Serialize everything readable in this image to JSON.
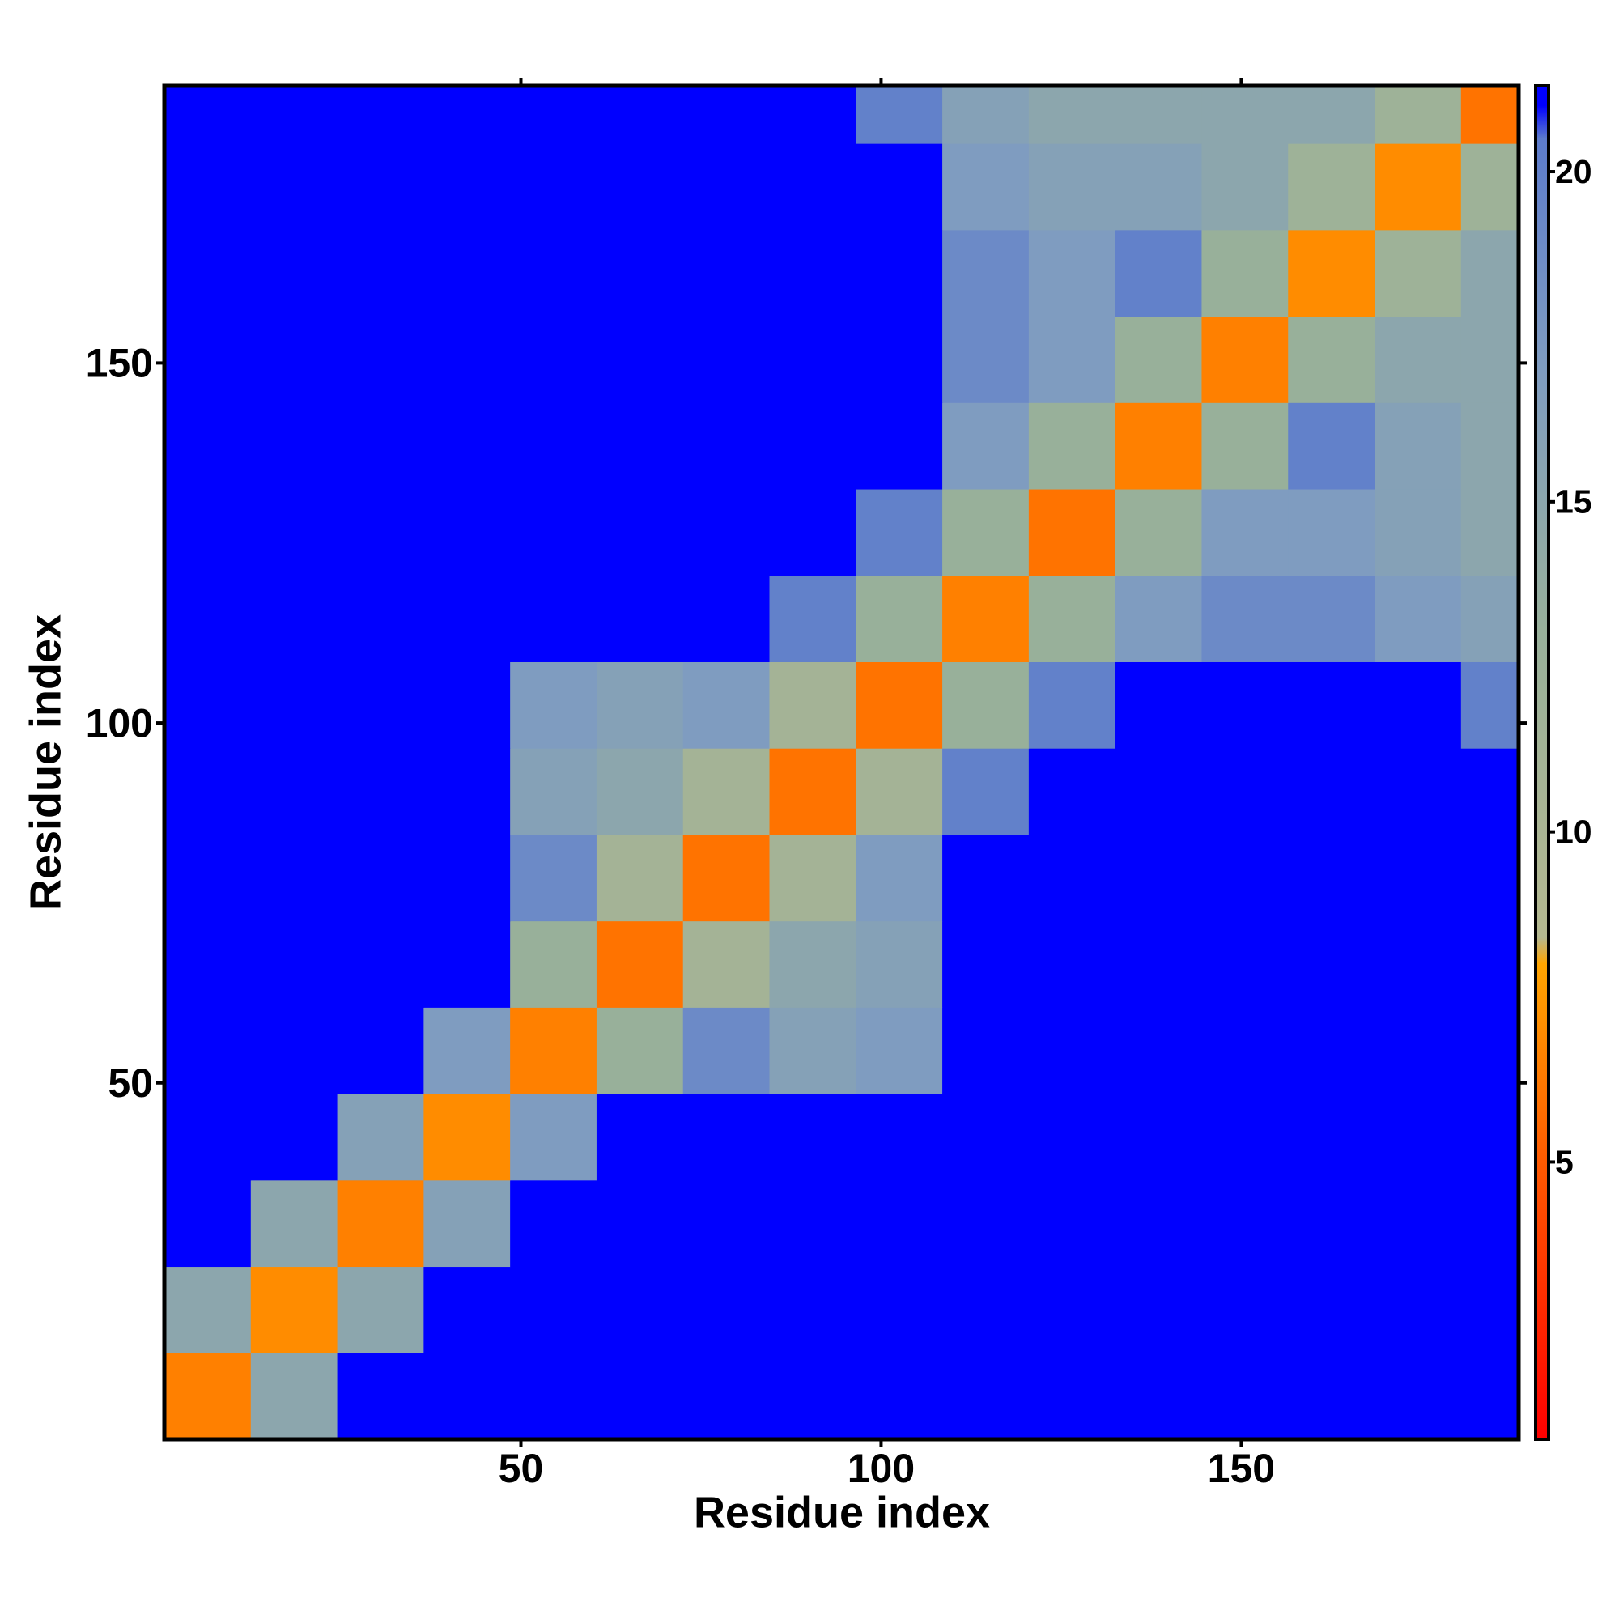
{
  "chart_data": {
    "type": "heatmap",
    "xlabel": "Residue index",
    "ylabel": "Residue index",
    "xlim": [
      0.5,
      188.5
    ],
    "ylim": [
      0.5,
      188.5
    ],
    "xticks": [
      50,
      100,
      150
    ],
    "yticks": [
      50,
      100,
      150
    ],
    "xbins": [
      0.5,
      12.5,
      24.5,
      36.5,
      48.5,
      60.5,
      72.5,
      84.5,
      96.5,
      108.5,
      120.5,
      132.5,
      144.5,
      156.5,
      168.5,
      180.5,
      188.5
    ],
    "ybins": [
      0.5,
      12.5,
      24.5,
      36.5,
      48.5,
      60.5,
      72.5,
      84.5,
      96.5,
      108.5,
      120.5,
      132.5,
      144.5,
      156.5,
      168.5,
      180.5,
      188.5
    ],
    "values": [
      [
        6.5,
        15,
        21,
        21,
        21,
        21,
        21,
        21,
        21,
        21,
        21,
        21,
        21,
        21,
        21,
        21
      ],
      [
        15,
        7,
        15,
        21,
        21,
        21,
        21,
        21,
        21,
        21,
        21,
        21,
        21,
        21,
        21,
        21
      ],
      [
        21,
        15,
        6.5,
        16,
        21,
        21,
        21,
        21,
        21,
        21,
        21,
        21,
        21,
        21,
        21,
        21
      ],
      [
        21,
        21,
        16,
        7,
        17,
        21,
        21,
        21,
        21,
        21,
        21,
        21,
        21,
        21,
        21,
        21
      ],
      [
        21,
        21,
        21,
        17,
        6.5,
        13,
        19,
        16,
        17,
        21,
        21,
        21,
        21,
        21,
        21,
        21
      ],
      [
        21,
        21,
        21,
        21,
        13,
        6,
        11,
        15,
        16,
        21,
        21,
        21,
        21,
        21,
        21,
        21
      ],
      [
        21,
        21,
        21,
        21,
        19,
        11,
        6,
        11,
        17,
        21,
        21,
        21,
        21,
        21,
        21,
        21
      ],
      [
        21,
        21,
        21,
        21,
        16,
        15,
        11,
        6,
        11,
        20,
        21,
        21,
        21,
        21,
        21,
        21
      ],
      [
        21,
        21,
        21,
        21,
        17,
        16,
        17,
        11,
        6,
        13,
        20,
        21,
        21,
        21,
        21,
        20
      ],
      [
        21,
        21,
        21,
        21,
        21,
        21,
        21,
        20,
        13,
        6.5,
        13,
        17,
        19,
        19,
        17,
        16
      ],
      [
        21,
        21,
        21,
        21,
        21,
        21,
        21,
        21,
        20,
        13,
        6,
        13,
        17,
        17,
        16,
        15
      ],
      [
        21,
        21,
        21,
        21,
        21,
        21,
        21,
        21,
        21,
        17,
        13,
        6.5,
        13,
        20,
        16,
        15
      ],
      [
        21,
        21,
        21,
        21,
        21,
        21,
        21,
        21,
        21,
        19,
        17,
        13,
        6.5,
        13,
        15,
        15
      ],
      [
        21,
        21,
        21,
        21,
        21,
        21,
        21,
        21,
        21,
        19,
        17,
        20,
        13,
        7,
        12,
        15
      ],
      [
        21,
        21,
        21,
        21,
        21,
        21,
        21,
        21,
        21,
        17,
        16,
        16,
        15,
        12,
        7,
        12
      ],
      [
        21,
        21,
        21,
        21,
        21,
        21,
        21,
        21,
        20,
        16,
        15,
        15,
        15,
        15,
        12,
        6
      ]
    ],
    "colorscale": [
      {
        "value": 0.8,
        "color": "#ff0000"
      },
      {
        "value": 5,
        "color": "#ff5a00"
      },
      {
        "value": 8,
        "color": "#ffa500"
      },
      {
        "value": 8.4,
        "color": "#b4b890"
      },
      {
        "value": 13,
        "color": "#98b09a"
      },
      {
        "value": 17,
        "color": "#7f9cc0"
      },
      {
        "value": 20.5,
        "color": "#5d7ccc"
      },
      {
        "value": 21,
        "color": "#0000ff"
      }
    ],
    "zlim": [
      0.8,
      21.3
    ],
    "zticks": [
      5,
      10,
      15,
      20
    ]
  }
}
